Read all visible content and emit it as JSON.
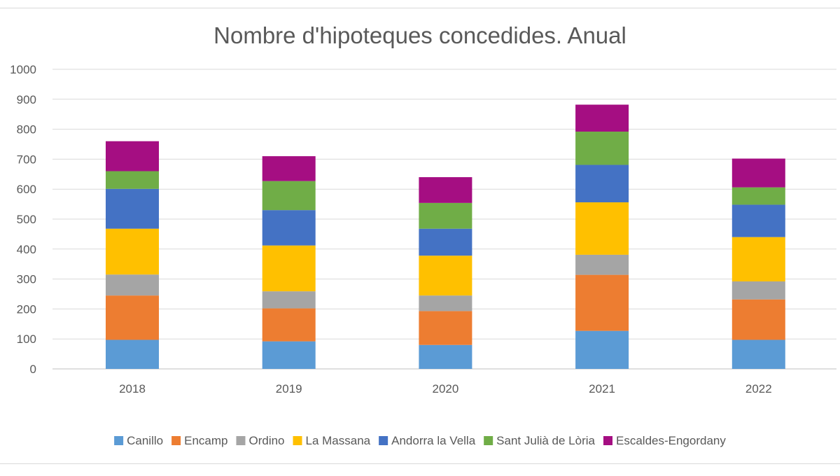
{
  "chart_data": {
    "type": "bar",
    "stacked": true,
    "title": "Nombre d'hipoteques concedides. Anual",
    "xlabel": "",
    "ylabel": "",
    "ylim": [
      0,
      1000
    ],
    "yticks": [
      0,
      100,
      200,
      300,
      400,
      500,
      600,
      700,
      800,
      900,
      1000
    ],
    "grid": true,
    "legend_position": "bottom",
    "categories": [
      "2018",
      "2019",
      "2020",
      "2021",
      "2022"
    ],
    "series": [
      {
        "name": "Canillo",
        "color": "#5b9bd5",
        "values": [
          97,
          92,
          80,
          127,
          97
        ]
      },
      {
        "name": "Encamp",
        "color": "#ed7d31",
        "values": [
          148,
          110,
          113,
          187,
          135
        ]
      },
      {
        "name": "Ordino",
        "color": "#a5a5a5",
        "values": [
          70,
          57,
          52,
          67,
          60
        ]
      },
      {
        "name": "La Massana",
        "color": "#ffc000",
        "values": [
          153,
          153,
          133,
          175,
          148
        ]
      },
      {
        "name": "Andorra la Vella",
        "color": "#4472c4",
        "values": [
          133,
          118,
          90,
          125,
          108
        ]
      },
      {
        "name": "Sant Julià de Lòria",
        "color": "#70ad47",
        "values": [
          59,
          97,
          86,
          111,
          58
        ]
      },
      {
        "name": "Escaldes-Engordany",
        "color": "#a50e82",
        "values": [
          100,
          83,
          86,
          90,
          96
        ]
      }
    ]
  }
}
